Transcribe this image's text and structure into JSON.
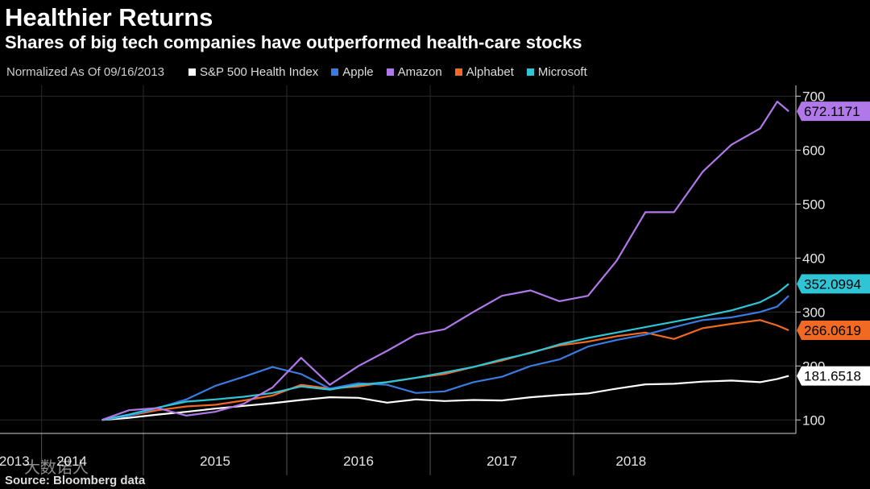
{
  "title": "Healthier Returns",
  "subtitle": "Shares of big tech companies have outperformed health-care stocks",
  "legend_note": "Normalized As Of 09/16/2013",
  "source": "Source: Bloomberg data",
  "watermark": "大数诺人",
  "colors": {
    "background": "#000000",
    "grid": "#2a2a2a",
    "axis_text": "#e6e6e6"
  },
  "chart_data": {
    "type": "line",
    "title": "Healthier Returns",
    "subtitle": "Shares of big tech companies have outperformed health-care stocks",
    "xlabel": "",
    "ylabel": "",
    "ylim": [
      75,
      720
    ],
    "xlim": [
      2013.0,
      2018.55
    ],
    "yticks": [
      100,
      200,
      300,
      400,
      500,
      600,
      700
    ],
    "ytick_labels": [
      "100",
      "200",
      "300",
      "400",
      "500",
      "600",
      "700"
    ],
    "year_labels": [
      {
        "label": "2013",
        "x": 2013.1
      },
      {
        "label": "2014",
        "x": 2013.5
      },
      {
        "label": "2015",
        "x": 2014.5
      },
      {
        "label": "2016",
        "x": 2015.5
      },
      {
        "label": "2017",
        "x": 2016.5
      },
      {
        "label": "2018",
        "x": 2017.4
      }
    ],
    "year_dividers": [
      2013.29,
      2014.0,
      2015.0,
      2016.0,
      2017.0
    ],
    "x": [
      2013.71,
      2013.9,
      2014.1,
      2014.3,
      2014.5,
      2014.7,
      2014.9,
      2015.1,
      2015.3,
      2015.5,
      2015.7,
      2015.9,
      2016.1,
      2016.3,
      2016.5,
      2016.7,
      2016.9,
      2017.1,
      2017.3,
      2017.5,
      2017.7,
      2017.9,
      2018.1,
      2018.3,
      2018.42,
      2018.5
    ],
    "series": [
      {
        "name": "S&P 500 Health Index",
        "color": "#ffffff",
        "end_label": "181.6518",
        "values": [
          100,
          104,
          110,
          115,
          121,
          126,
          131,
          137,
          142,
          141,
          132,
          138,
          135,
          137,
          136,
          142,
          146,
          149,
          158,
          166,
          167,
          171,
          173,
          170,
          176,
          181.65
        ]
      },
      {
        "name": "Apple",
        "color": "#3a7be0",
        "end_label": "",
        "values": [
          100,
          108,
          122,
          138,
          163,
          180,
          198,
          185,
          158,
          168,
          165,
          150,
          153,
          170,
          180,
          200,
          212,
          236,
          248,
          258,
          272,
          285,
          290,
          300,
          310,
          330
        ]
      },
      {
        "name": "Amazon",
        "color": "#b078e8",
        "end_label": "672.1171",
        "values": [
          100,
          118,
          122,
          108,
          115,
          130,
          160,
          215,
          165,
          200,
          228,
          258,
          268,
          300,
          330,
          340,
          320,
          330,
          395,
          485,
          485,
          560,
          610,
          640,
          690,
          672.12
        ]
      },
      {
        "name": "Alphabet",
        "color": "#f06a24",
        "end_label": "266.0619",
        "values": [
          100,
          108,
          118,
          125,
          128,
          136,
          145,
          165,
          158,
          162,
          170,
          178,
          185,
          198,
          210,
          225,
          238,
          245,
          255,
          262,
          250,
          270,
          278,
          285,
          275,
          266.06
        ]
      },
      {
        "name": "Microsoft",
        "color": "#2ec6d6",
        "end_label": "352.0994",
        "values": [
          100,
          110,
          123,
          134,
          138,
          143,
          150,
          162,
          156,
          165,
          170,
          178,
          188,
          198,
          212,
          224,
          240,
          252,
          262,
          272,
          282,
          292,
          303,
          318,
          335,
          352.1
        ]
      }
    ]
  }
}
